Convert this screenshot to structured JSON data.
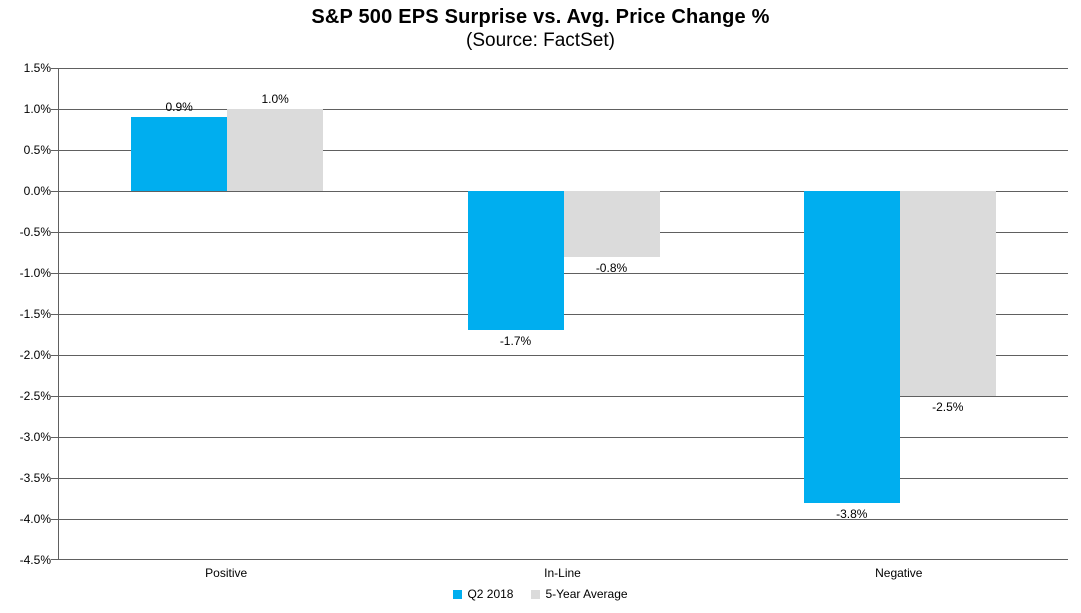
{
  "header": {
    "title": "S&P 500 EPS Surprise vs. Avg. Price Change %",
    "subtitle": "(Source: FactSet)"
  },
  "colors": {
    "series_q2_2018": "#00AEEF",
    "series_5yr_avg": "#DBDBDB",
    "gridline": "#606060",
    "axis": "#606060",
    "text": "#000000",
    "background": "#FFFFFF"
  },
  "chart_data": {
    "type": "bar",
    "title": "S&P 500 EPS Surprise vs. Avg. Price Change %",
    "subtitle": "(Source: FactSet)",
    "categories": [
      "Positive",
      "In-Line",
      "Negative"
    ],
    "series": [
      {
        "name": "Q2 2018",
        "color": "#00AEEF",
        "values": [
          0.9,
          -1.7,
          -3.8
        ],
        "labels": [
          "0.9%",
          "-1.7%",
          "-3.8%"
        ]
      },
      {
        "name": "5-Year Average",
        "color": "#DBDBDB",
        "values": [
          1.0,
          -0.8,
          -2.5
        ],
        "labels": [
          "1.0%",
          "-0.8%",
          "-2.5%"
        ]
      }
    ],
    "xlabel": "",
    "ylabel": "",
    "ylim": [
      -4.5,
      1.5
    ],
    "ytick_step": 0.5,
    "ytick_labels": [
      "1.5%",
      "1.0%",
      "0.5%",
      "0.0%",
      "-0.5%",
      "-1.0%",
      "-1.5%",
      "-2.0%",
      "-2.5%",
      "-3.0%",
      "-3.5%",
      "-4.0%",
      "-4.5%"
    ],
    "grid": true,
    "legend_position": "bottom"
  }
}
